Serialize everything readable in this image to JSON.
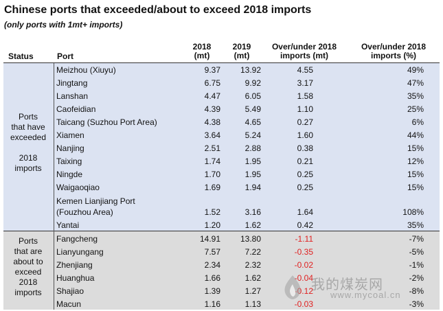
{
  "title": "Chinese ports that exceeded/about to exceed 2018 imports",
  "subtitle": "(only ports with 1mt+ imports)",
  "headers": {
    "status": "Status",
    "port": "Port",
    "y2018": "2018\n(mt)",
    "y2019": "2019\n(mt)",
    "diff_mt": "Over/under 2018\nimports (mt)",
    "diff_pct": "Over/under 2018\nimports (%)"
  },
  "groups": [
    {
      "status": "Ports\nthat have\nexceeded\n\n2018\nimports",
      "rows": [
        {
          "port": "Meizhou (Xiuyu)",
          "y2018": "9.37",
          "y2019": "13.92",
          "diff": "4.55",
          "pct": "49%"
        },
        {
          "port": "Jingtang",
          "y2018": "6.75",
          "y2019": "9.92",
          "diff": "3.17",
          "pct": "47%"
        },
        {
          "port": "Lanshan",
          "y2018": "4.47",
          "y2019": "6.05",
          "diff": "1.58",
          "pct": "35%"
        },
        {
          "port": "Caofeidian",
          "y2018": "4.39",
          "y2019": "5.49",
          "diff": "1.10",
          "pct": "25%"
        },
        {
          "port": "Taicang (Suzhou Port Area)",
          "y2018": "4.38",
          "y2019": "4.65",
          "diff": "0.27",
          "pct": "6%"
        },
        {
          "port": "Xiamen",
          "y2018": "3.64",
          "y2019": "5.24",
          "diff": "1.60",
          "pct": "44%"
        },
        {
          "port": "Nanjing",
          "y2018": "2.51",
          "y2019": "2.88",
          "diff": "0.38",
          "pct": "15%"
        },
        {
          "port": "Taixing",
          "y2018": "1.74",
          "y2019": "1.95",
          "diff": "0.21",
          "pct": "12%"
        },
        {
          "port": "Ningde",
          "y2018": "1.70",
          "y2019": "1.95",
          "diff": "0.25",
          "pct": "15%"
        },
        {
          "port": "Waigaoqiao",
          "y2018": "1.69",
          "y2019": "1.94",
          "diff": "0.25",
          "pct": "15%"
        },
        {
          "port": "Kemen Lianjiang Port\n(Fouzhou Area)",
          "y2018": "1.52",
          "y2019": "3.16",
          "diff": "1.64",
          "pct": "108%"
        },
        {
          "port": "Yantai",
          "y2018": "1.20",
          "y2019": "1.62",
          "diff": "0.42",
          "pct": "35%"
        }
      ]
    },
    {
      "status": "Ports\nthat are\nabout to\nexceed\n2018\nimports",
      "rows": [
        {
          "port": "Fangcheng",
          "y2018": "14.91",
          "y2019": "13.80",
          "diff": "-1.11",
          "pct": "-7%"
        },
        {
          "port": "Lianyungang",
          "y2018": "7.57",
          "y2019": "7.22",
          "diff": "-0.35",
          "pct": "-5%"
        },
        {
          "port": "Zhenjiang",
          "y2018": "2.34",
          "y2019": "2.32",
          "diff": "-0.02",
          "pct": "-1%"
        },
        {
          "port": "Huanghua",
          "y2018": "1.66",
          "y2019": "1.62",
          "diff": "-0.04",
          "pct": "-2%"
        },
        {
          "port": "Shajiao",
          "y2018": "1.39",
          "y2019": "1.27",
          "diff": "-0.12",
          "pct": "-8%"
        },
        {
          "port": "Macun",
          "y2018": "1.16",
          "y2019": "1.13",
          "diff": "-0.03",
          "pct": "-3%"
        }
      ]
    }
  ],
  "watermark": {
    "cn": "我的煤炭网",
    "url": "www.mycoal.cn",
    "icon": "coal-logo-icon"
  },
  "colors": {
    "exceeded_band": "#dce3f2",
    "about_band": "#dcdcdc",
    "negative": "#e02020"
  }
}
